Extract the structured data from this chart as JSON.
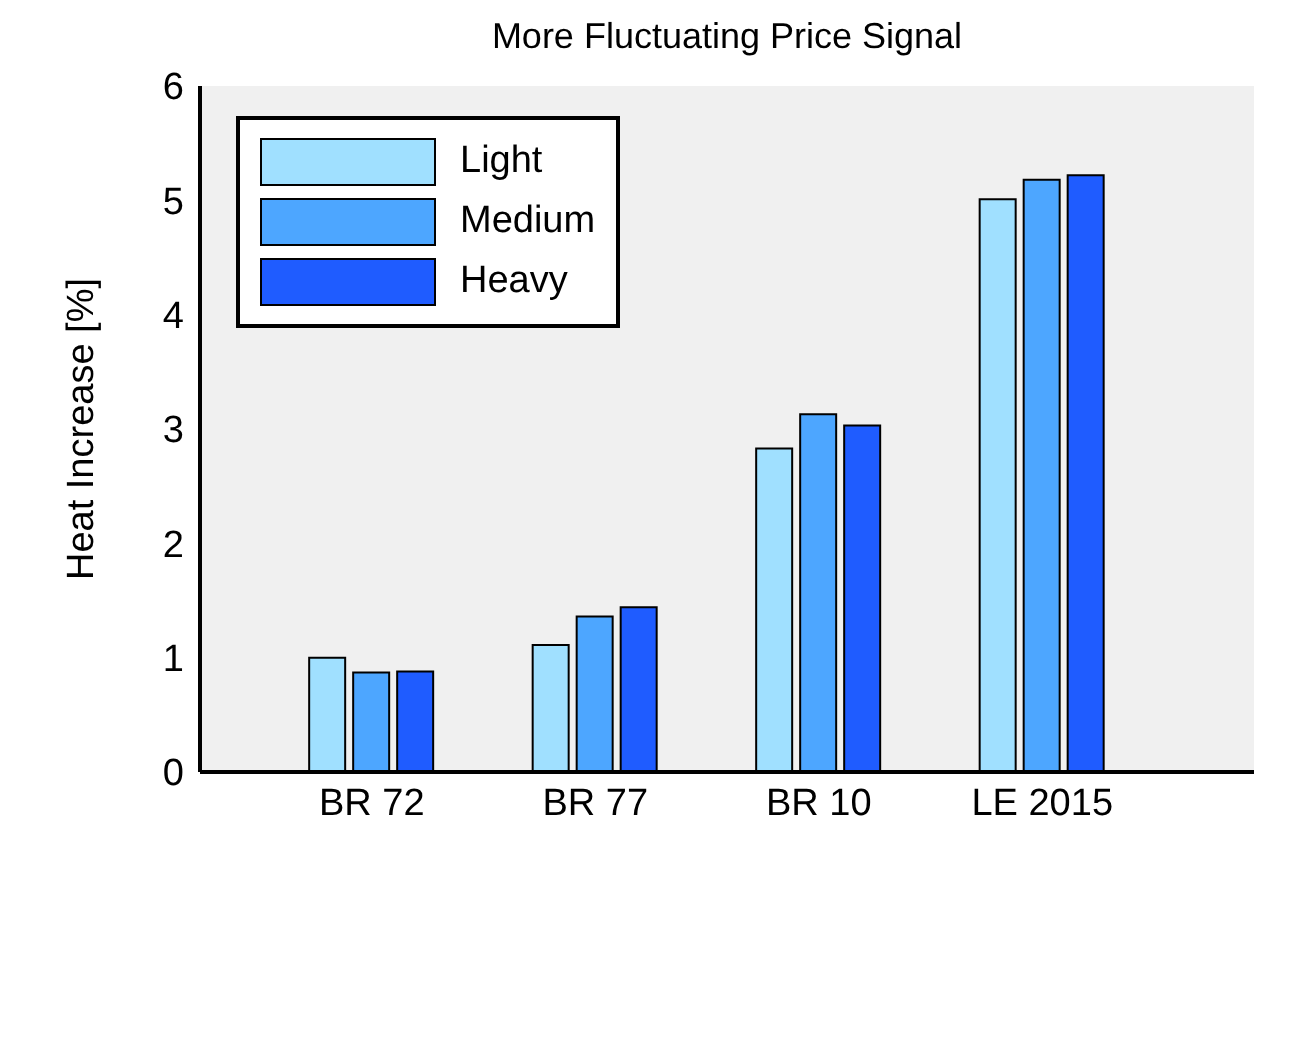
{
  "chart_data": {
    "type": "bar",
    "title": "More Fluctuating Price Signal",
    "ylabel": "Heat Increase [%]",
    "categories": [
      "BR 72",
      "BR 77",
      "BR 10",
      "LE 2015"
    ],
    "series": [
      {
        "name": "Light",
        "color": "#a0e0ff",
        "values": [
          1.0,
          1.11,
          2.83,
          5.01
        ]
      },
      {
        "name": "Medium",
        "color": "#4da6ff",
        "values": [
          0.87,
          1.36,
          3.13,
          5.18
        ]
      },
      {
        "name": "Heavy",
        "color": "#1f5cff",
        "values": [
          0.88,
          1.44,
          3.03,
          5.22
        ]
      }
    ],
    "ylim": [
      0,
      6
    ],
    "yticks": [
      0,
      1,
      2,
      3,
      4,
      5,
      6
    ],
    "legend": "top left"
  }
}
